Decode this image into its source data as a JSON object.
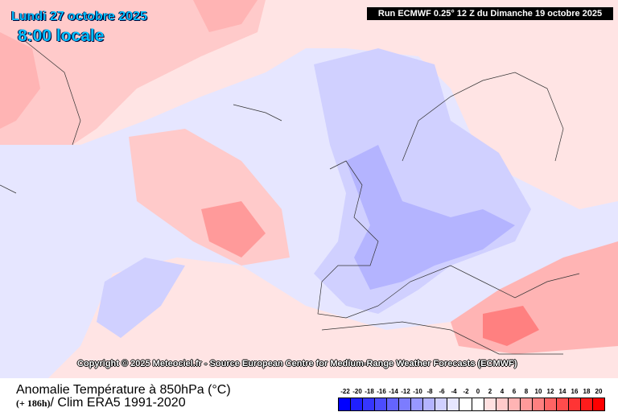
{
  "header": {
    "date": "Lundi 27 octobre 2025",
    "hour": "8:00 locale",
    "run": "Run ECMWF 0.25° 12 Z du Dimanche 19 octobre 2025"
  },
  "copyright": "Copyright © 2025 Meteociel.fr - Source European Centre for Medium-Range Weather Forecasts (ECMWF)",
  "footer": {
    "title": "Anomalie Température à 850hPa (°C)",
    "lead": "(+ 186h)",
    "clim": "/ Clim ERA5 1991-2020"
  },
  "legend": {
    "labels": [
      "-22",
      "-20",
      "-18",
      "-16",
      "-14",
      "-12",
      "-10",
      "-8",
      "-6",
      "-4",
      "-2",
      "0",
      "2",
      "4",
      "6",
      "8",
      "10",
      "12",
      "14",
      "16",
      "18",
      "20"
    ],
    "colors": [
      "#0000ff",
      "#2020ff",
      "#3636ff",
      "#4c4cff",
      "#6464ff",
      "#7c7cff",
      "#9898ff",
      "#b4b4ff",
      "#d0d0ff",
      "#e6e6ff",
      "#ffffff",
      "#ffffff",
      "#ffe0e0",
      "#ffcaca",
      "#ffb4b4",
      "#ff9a9a",
      "#ff8080",
      "#ff6464",
      "#ff4c4c",
      "#ff3434",
      "#ff1c1c",
      "#ff0000"
    ]
  }
}
